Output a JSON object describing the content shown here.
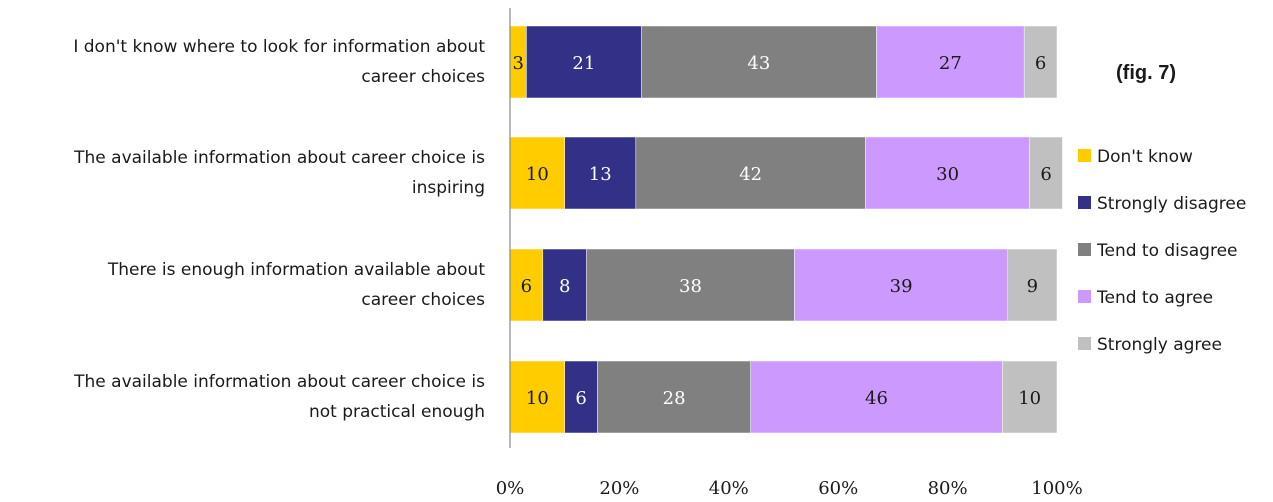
{
  "figure_label": "(fig. 7)",
  "chart_data": {
    "type": "bar",
    "orientation": "horizontal",
    "stacked": true,
    "percent": true,
    "categories": [
      [
        "I don't know where to look for information about",
        "career choices"
      ],
      [
        "The available information about career choice is",
        "inspiring"
      ],
      [
        "There is enough information available about",
        "career choices"
      ],
      [
        "The available information about career choice is",
        "not practical enough"
      ]
    ],
    "series": [
      {
        "name": "Don't know",
        "color": "#FFCC00",
        "label_color": "#1a1a1a",
        "values": [
          3,
          10,
          6,
          10
        ]
      },
      {
        "name": "Strongly disagree",
        "color": "#333087",
        "label_color": "#ffffff",
        "values": [
          21,
          13,
          8,
          6
        ]
      },
      {
        "name": "Tend to disagree",
        "color": "#808080",
        "label_color": "#ffffff",
        "values": [
          43,
          42,
          38,
          28
        ]
      },
      {
        "name": "Tend to agree",
        "color": "#CC99FF",
        "label_color": "#1a1a1a",
        "values": [
          27,
          30,
          39,
          46
        ]
      },
      {
        "name": "Strongly agree",
        "color": "#C0C0C0",
        "label_color": "#1a1a1a",
        "values": [
          6,
          6,
          9,
          10
        ]
      }
    ],
    "x_ticks": [
      "0%",
      "20%",
      "40%",
      "60%",
      "80%",
      "100%"
    ],
    "xlim": [
      0,
      100
    ],
    "grid": false,
    "legend_position": "right"
  }
}
